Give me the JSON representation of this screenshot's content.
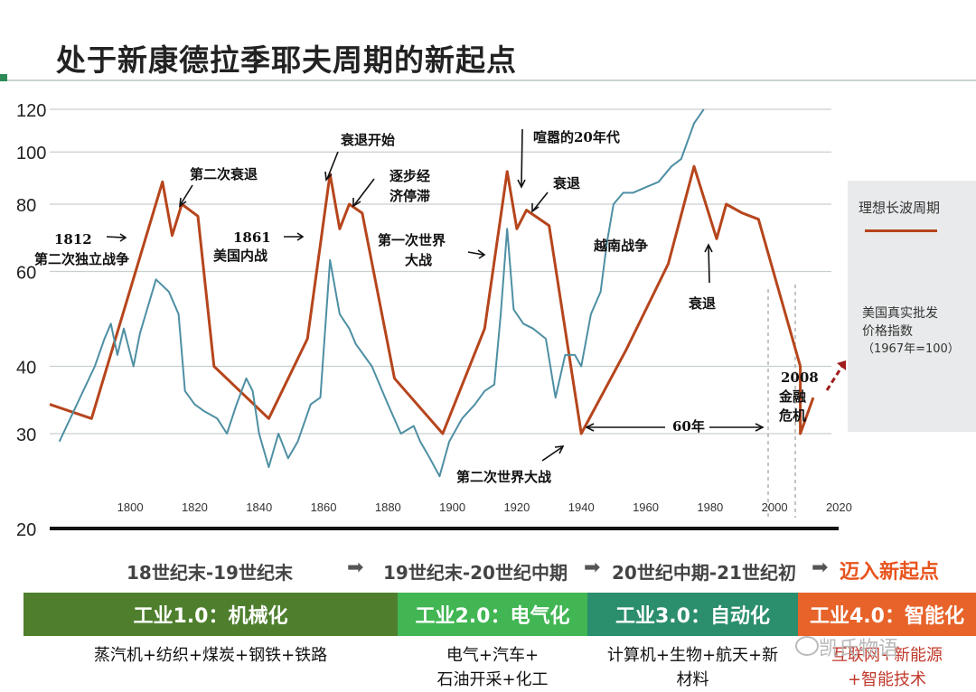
{
  "title": "处于新康德拉季耶夫周期的新起点",
  "chart_data": {
    "type": "line",
    "y_scale": "log",
    "ylim": [
      20,
      120
    ],
    "xlim": [
      1775,
      2020
    ],
    "y_ticks": [
      120,
      100,
      80,
      60,
      40,
      30,
      20
    ],
    "x_ticks": [
      1800,
      1820,
      1840,
      1860,
      1880,
      1900,
      1920,
      1940,
      1960,
      1980,
      2000,
      2020
    ],
    "series": [
      {
        "name": "理想长波周期",
        "color": "#b6451c",
        "points": [
          [
            1775,
            34
          ],
          [
            1788,
            32
          ],
          [
            1810,
            88
          ],
          [
            1813,
            70
          ],
          [
            1816,
            80
          ],
          [
            1821,
            76
          ],
          [
            1826,
            40
          ],
          [
            1843,
            32
          ],
          [
            1855,
            45
          ],
          [
            1862,
            91
          ],
          [
            1865,
            72
          ],
          [
            1868,
            80
          ],
          [
            1872,
            77
          ],
          [
            1882,
            38
          ],
          [
            1897,
            30
          ],
          [
            1910,
            47
          ],
          [
            1917,
            92
          ],
          [
            1920,
            72
          ],
          [
            1923,
            78
          ],
          [
            1930,
            73
          ],
          [
            1940,
            30
          ],
          [
            1954,
            43
          ],
          [
            1967,
            62
          ],
          [
            1975,
            94
          ],
          [
            1982,
            69
          ],
          [
            1985,
            80
          ],
          [
            1990,
            77
          ],
          [
            1995,
            75
          ],
          [
            2008,
            40
          ],
          [
            2008,
            30
          ],
          [
            2012,
            35
          ]
        ]
      },
      {
        "name": "美国真实批发价格指数（1967年=100）",
        "color": "#4e8fa3",
        "points": [
          [
            1778,
            29
          ],
          [
            1789,
            40
          ],
          [
            1792,
            45
          ],
          [
            1794,
            48
          ],
          [
            1796,
            42
          ],
          [
            1798,
            47
          ],
          [
            1801,
            40
          ],
          [
            1803,
            46
          ],
          [
            1808,
            58
          ],
          [
            1812,
            55
          ],
          [
            1815,
            50
          ],
          [
            1817,
            36
          ],
          [
            1820,
            34
          ],
          [
            1823,
            33
          ],
          [
            1827,
            32
          ],
          [
            1830,
            30
          ],
          [
            1833,
            34
          ],
          [
            1836,
            38
          ],
          [
            1838,
            36
          ],
          [
            1840,
            30
          ],
          [
            1843,
            26
          ],
          [
            1846,
            30
          ],
          [
            1849,
            27
          ],
          [
            1852,
            29
          ],
          [
            1856,
            34
          ],
          [
            1859,
            35
          ],
          [
            1862,
            63
          ],
          [
            1865,
            50
          ],
          [
            1868,
            47
          ],
          [
            1870,
            44
          ],
          [
            1875,
            40
          ],
          [
            1880,
            34
          ],
          [
            1884,
            30
          ],
          [
            1888,
            31
          ],
          [
            1890,
            29
          ],
          [
            1893,
            27
          ],
          [
            1896,
            25
          ],
          [
            1899,
            29
          ],
          [
            1903,
            32
          ],
          [
            1907,
            34
          ],
          [
            1910,
            36
          ],
          [
            1913,
            37
          ],
          [
            1915,
            50
          ],
          [
            1917,
            72
          ],
          [
            1919,
            51
          ],
          [
            1922,
            48
          ],
          [
            1925,
            47
          ],
          [
            1929,
            45
          ],
          [
            1932,
            35
          ],
          [
            1935,
            42
          ],
          [
            1938,
            42
          ],
          [
            1940,
            40
          ],
          [
            1943,
            50
          ],
          [
            1946,
            55
          ],
          [
            1948,
            68
          ],
          [
            1950,
            80
          ],
          [
            1953,
            84
          ],
          [
            1956,
            84
          ],
          [
            1960,
            86
          ],
          [
            1964,
            88
          ],
          [
            1968,
            94
          ],
          [
            1971,
            97
          ],
          [
            1975,
            113
          ],
          [
            1978,
            120
          ]
        ]
      }
    ],
    "annotations": [
      "1812",
      "第二次独立战争",
      "第二次衰退",
      "1861",
      "美国内战",
      "衰退开始",
      "逐步经",
      "济停滞",
      "第一次世界",
      "大战",
      "喧嚣的20年代",
      "衰退",
      "越南战争",
      "衰退",
      "第二次世界大战",
      "60年",
      "2008",
      "金融",
      "危机"
    ]
  },
  "legend": {
    "ideal_label": "理想长波周期",
    "wpi_label_1": "美国真实批发",
    "wpi_label_2": "价格指数",
    "wpi_label_3": "（1967年=100）"
  },
  "eras": {
    "era1": "18世纪末-19世纪末",
    "era2": "19世纪末-20世纪中期",
    "era3": "20世纪中期-21世纪初",
    "era4": "迈入新起点",
    "arrow": "➡"
  },
  "bands": [
    {
      "label": "工业1.0：机械化",
      "color": "#4f7f2d",
      "desc1": "蒸汽机+纺织+煤炭+钢铁+铁路",
      "desc2": ""
    },
    {
      "label": "工业2.0：电气化",
      "color": "#41b653",
      "desc1": "电气+汽车+",
      "desc2": "石油开采+化工"
    },
    {
      "label": "工业3.0：自动化",
      "color": "#2b8e6d",
      "desc1": "计算机+生物+航天+新",
      "desc2": "材料"
    },
    {
      "label": "工业4.0：智能化",
      "color": "#e7632a",
      "desc1": "互联网+新能源",
      "desc2": "+智能技术"
    }
  ],
  "watermark": "凯氏物语"
}
